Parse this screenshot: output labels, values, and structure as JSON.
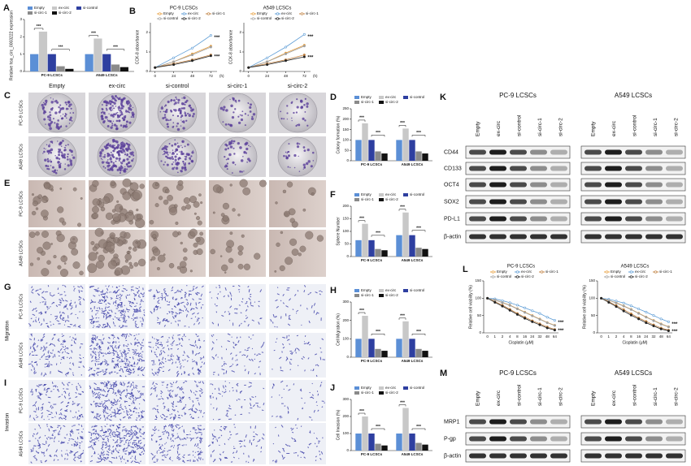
{
  "chart_data": [
    {
      "type": "bar",
      "panel": "A",
      "ylabel": "Relative hsa_circ_0003222 expression",
      "categories": [
        "PC-9 LCSCs",
        "A549 LCSCs"
      ],
      "ylim": [
        0,
        3
      ],
      "yticks": [
        0,
        1,
        2,
        3
      ],
      "series": [
        {
          "name": "Empty",
          "color": "#5b8fd6",
          "values": [
            1,
            1
          ]
        },
        {
          "name": "ex-circ",
          "color": "#c8c8c8",
          "values": [
            2.3,
            1.9
          ]
        },
        {
          "name": "si-control",
          "color": "#2e3fa0",
          "values": [
            1,
            1
          ]
        },
        {
          "name": "si-circ-1",
          "color": "#8a8a8a",
          "values": [
            0.3,
            0.4
          ]
        },
        {
          "name": "si-circ-2",
          "color": "#111111",
          "values": [
            0.15,
            0.25
          ]
        }
      ],
      "annotations": [
        "***",
        "***",
        "***",
        "***"
      ]
    },
    {
      "type": "line",
      "panel": "B",
      "title": "PC-9 LCSCs",
      "ylabel": "CCK-8 absorbance",
      "xlabel": "(h)",
      "x": [
        0,
        24,
        48,
        72
      ],
      "xlim": [
        -6,
        80
      ],
      "xticks": [
        0,
        24,
        48,
        72
      ],
      "ylim": [
        0,
        2.5
      ],
      "yticks": [
        0,
        1,
        2
      ],
      "series": [
        {
          "name": "Empty",
          "color": "#e8a040",
          "values": [
            0.2,
            0.5,
            0.9,
            1.3
          ]
        },
        {
          "name": "ex-circ",
          "color": "#5b9bd5",
          "values": [
            0.2,
            0.7,
            1.2,
            1.85
          ]
        },
        {
          "name": "si-circ-1",
          "color": "#c08040",
          "values": [
            0.2,
            0.4,
            0.6,
            0.85
          ]
        },
        {
          "name": "si-control",
          "color": "#a0a0a0",
          "values": [
            0.2,
            0.5,
            0.85,
            1.25
          ]
        },
        {
          "name": "si-circ-2",
          "color": "#222222",
          "values": [
            0.2,
            0.35,
            0.55,
            0.8
          ]
        }
      ],
      "annotations": [
        "***",
        "***"
      ]
    },
    {
      "type": "line",
      "title": "A549 LCSCs",
      "ylabel": "CCK-8 absorbance",
      "xlabel": "(h)",
      "x": [
        0,
        24,
        48,
        72
      ],
      "xlim": [
        -6,
        80
      ],
      "xticks": [
        0,
        24,
        48,
        72
      ],
      "ylim": [
        0,
        2.5
      ],
      "yticks": [
        0,
        1,
        2
      ],
      "series": [
        {
          "name": "Empty",
          "color": "#e8a040",
          "values": [
            0.2,
            0.5,
            0.95,
            1.35
          ]
        },
        {
          "name": "ex-circ",
          "color": "#5b9bd5",
          "values": [
            0.2,
            0.7,
            1.25,
            1.9
          ]
        },
        {
          "name": "si-circ-1",
          "color": "#c08040",
          "values": [
            0.2,
            0.4,
            0.6,
            0.85
          ]
        },
        {
          "name": "si-control",
          "color": "#a0a0a0",
          "values": [
            0.2,
            0.5,
            0.9,
            1.3
          ]
        },
        {
          "name": "si-circ-2",
          "color": "#222222",
          "values": [
            0.2,
            0.35,
            0.55,
            0.75
          ]
        }
      ],
      "annotations": [
        "***",
        "***"
      ]
    },
    {
      "type": "bar",
      "panel": "D",
      "ylabel": "Colony formation (%)",
      "categories": [
        "PC-9 LCSCs",
        "A549 LCSCs"
      ],
      "ylim": [
        0,
        250
      ],
      "yticks": [
        0,
        50,
        100,
        150,
        200,
        250
      ],
      "series": [
        {
          "name": "Empty",
          "color": "#5b8fd6",
          "values": [
            100,
            100
          ]
        },
        {
          "name": "ex-circ",
          "color": "#c8c8c8",
          "values": [
            180,
            155
          ]
        },
        {
          "name": "si-control",
          "color": "#2e3fa0",
          "values": [
            100,
            100
          ]
        },
        {
          "name": "si-circ-1",
          "color": "#8a8a8a",
          "values": [
            45,
            45
          ]
        },
        {
          "name": "si-circ-2",
          "color": "#111111",
          "values": [
            35,
            35
          ]
        }
      ],
      "annotations": [
        "***",
        "***",
        "***",
        "***"
      ]
    },
    {
      "type": "bar",
      "panel": "F",
      "ylabel": "Sphere Number",
      "categories": [
        "PC-9 LCSCs",
        "A549 LCSCs"
      ],
      "ylim": [
        0,
        200
      ],
      "yticks": [
        0,
        50,
        100,
        150,
        200
      ],
      "series": [
        {
          "name": "Empty",
          "color": "#5b8fd6",
          "values": [
            65,
            85
          ]
        },
        {
          "name": "ex-circ",
          "color": "#c8c8c8",
          "values": [
            130,
            175
          ]
        },
        {
          "name": "si-control",
          "color": "#2e3fa0",
          "values": [
            65,
            85
          ]
        },
        {
          "name": "si-circ-1",
          "color": "#8a8a8a",
          "values": [
            30,
            35
          ]
        },
        {
          "name": "si-circ-2",
          "color": "#111111",
          "values": [
            25,
            30
          ]
        }
      ],
      "annotations": [
        "***",
        "***",
        "***",
        "***"
      ]
    },
    {
      "type": "bar",
      "panel": "H",
      "ylabel": "Cell Migration (%)",
      "categories": [
        "PC-9 LCSCs",
        "A549 LCSCs"
      ],
      "ylim": [
        0,
        300
      ],
      "yticks": [
        0,
        100,
        200,
        300
      ],
      "series": [
        {
          "name": "Empty",
          "color": "#5b8fd6",
          "values": [
            100,
            100
          ]
        },
        {
          "name": "ex-circ",
          "color": "#c8c8c8",
          "values": [
            225,
            195
          ]
        },
        {
          "name": "si-control",
          "color": "#2e3fa0",
          "values": [
            100,
            100
          ]
        },
        {
          "name": "si-circ-1",
          "color": "#8a8a8a",
          "values": [
            45,
            45
          ]
        },
        {
          "name": "si-circ-2",
          "color": "#111111",
          "values": [
            35,
            35
          ]
        }
      ],
      "annotations": [
        "***",
        "***",
        "***",
        "***"
      ]
    },
    {
      "type": "bar",
      "panel": "J",
      "ylabel": "Cell Invasion (%)",
      "categories": [
        "PC-9 LCSCs",
        "A549 LCSCs"
      ],
      "ylim": [
        0,
        300
      ],
      "yticks": [
        0,
        100,
        200,
        300
      ],
      "series": [
        {
          "name": "Empty",
          "color": "#5b8fd6",
          "values": [
            100,
            100
          ]
        },
        {
          "name": "ex-circ",
          "color": "#c8c8c8",
          "values": [
            200,
            250
          ]
        },
        {
          "name": "si-control",
          "color": "#2e3fa0",
          "values": [
            100,
            100
          ]
        },
        {
          "name": "si-circ-1",
          "color": "#8a8a8a",
          "values": [
            40,
            45
          ]
        },
        {
          "name": "si-circ-2",
          "color": "#111111",
          "values": [
            30,
            35
          ]
        }
      ],
      "annotations": [
        "***",
        "***",
        "***",
        "***"
      ]
    },
    {
      "type": "line",
      "panel": "L",
      "title": "PC-9 LCSCs",
      "ylabel": "Relative cell viability (%)",
      "xlabel": "Cisplatin (μM)",
      "categories": [
        "0",
        "1",
        "2",
        "4",
        "8",
        "16",
        "24",
        "32",
        "48",
        "64"
      ],
      "ylim": [
        0,
        150
      ],
      "yticks": [
        0,
        50,
        100,
        150
      ],
      "series": [
        {
          "name": "Empty",
          "color": "#e8a040",
          "values": [
            100,
            95,
            88,
            80,
            70,
            60,
            50,
            40,
            30,
            22
          ]
        },
        {
          "name": "ex-circ",
          "color": "#5b9bd5",
          "values": [
            100,
            98,
            93,
            87,
            80,
            72,
            64,
            56,
            45,
            36
          ]
        },
        {
          "name": "si-circ-1",
          "color": "#c08040",
          "values": [
            100,
            90,
            80,
            68,
            56,
            45,
            35,
            26,
            17,
            10
          ]
        },
        {
          "name": "si-control",
          "color": "#a0a0a0",
          "values": [
            100,
            95,
            87,
            79,
            69,
            59,
            49,
            39,
            29,
            21
          ]
        },
        {
          "name": "si-circ-2",
          "color": "#222222",
          "values": [
            100,
            88,
            77,
            65,
            53,
            42,
            32,
            23,
            14,
            8
          ]
        }
      ],
      "annotations": [
        "***",
        "***"
      ]
    },
    {
      "type": "line",
      "title": "A549 LCSCs",
      "ylabel": "Relative cell viability (%)",
      "xlabel": "Cisplatin (μM)",
      "categories": [
        "0",
        "1",
        "2",
        "4",
        "8",
        "16",
        "24",
        "32",
        "48",
        "64"
      ],
      "ylim": [
        0,
        150
      ],
      "yticks": [
        0,
        50,
        100,
        150
      ],
      "series": [
        {
          "name": "Empty",
          "color": "#e8a040",
          "values": [
            100,
            94,
            87,
            78,
            68,
            57,
            46,
            36,
            26,
            18
          ]
        },
        {
          "name": "ex-circ",
          "color": "#5b9bd5",
          "values": [
            100,
            97,
            92,
            86,
            78,
            69,
            60,
            50,
            40,
            32
          ]
        },
        {
          "name": "si-circ-1",
          "color": "#c08040",
          "values": [
            100,
            90,
            79,
            67,
            55,
            43,
            33,
            23,
            14,
            8
          ]
        },
        {
          "name": "si-control",
          "color": "#a0a0a0",
          "values": [
            100,
            94,
            86,
            77,
            67,
            56,
            45,
            35,
            25,
            17
          ]
        },
        {
          "name": "si-circ-2",
          "color": "#222222",
          "values": [
            100,
            88,
            76,
            63,
            51,
            40,
            29,
            20,
            11,
            6
          ]
        }
      ],
      "annotations": [
        "***",
        "***"
      ]
    }
  ],
  "image_panels": {
    "columns": [
      "Empty",
      "ex-circ",
      "si-control",
      "si-circ-1",
      "si-circ-2"
    ],
    "C": {
      "panel": "C",
      "rows": [
        "PC-9 LCSCs",
        "A549 LCSCs"
      ]
    },
    "E": {
      "panel": "E",
      "rows": [
        "PC-9 LCSCs",
        "A549 LCSCs"
      ]
    },
    "G": {
      "panel": "G",
      "side": "Migration",
      "rows": [
        "PC-9 LCSCs",
        "A549 LCSCs"
      ]
    },
    "I": {
      "panel": "I",
      "side": "Invasion",
      "rows": [
        "PC-9 LCSCs",
        "A549 LCSCs"
      ]
    }
  },
  "blots": {
    "K": {
      "panel": "K",
      "groups": [
        "PC-9 LCSCs",
        "A549 LCSCs"
      ],
      "lanes": [
        "Empty",
        "ex-circ",
        "si-control",
        "si-circ-1",
        "si-circ-2"
      ],
      "proteins": [
        "CD44",
        "CD133",
        "OCT4",
        "SOX2",
        "PD-L1",
        "β-actin"
      ]
    },
    "M": {
      "panel": "M",
      "groups": [
        "PC-9 LCSCs",
        "A549 LCSCs"
      ],
      "lanes": [
        "Empty",
        "ex-circ",
        "si-control",
        "si-circ-1",
        "si-circ-2"
      ],
      "proteins": [
        "MRP1",
        "P-gp",
        "β-actin"
      ]
    }
  }
}
